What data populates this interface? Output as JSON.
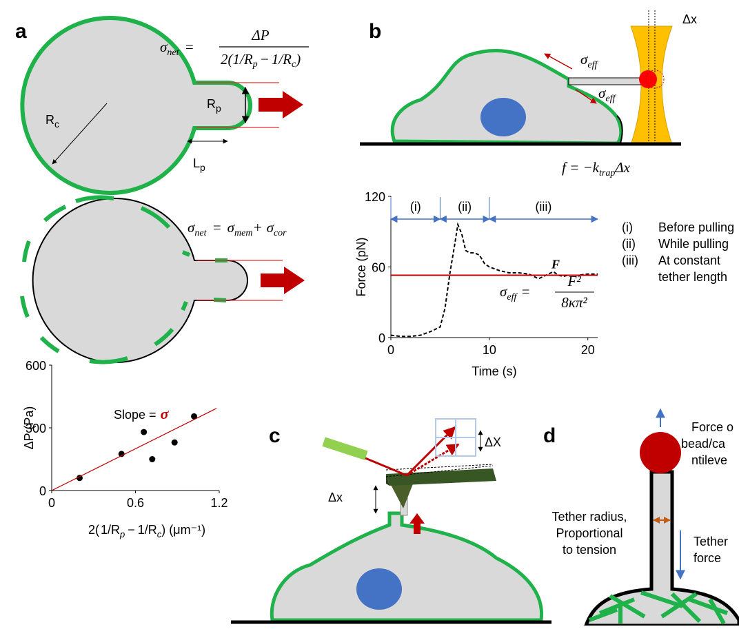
{
  "labels": {
    "a": "a",
    "b": "b",
    "c": "c",
    "d": "d"
  },
  "panel_a": {
    "eq1": {
      "sigma": "σ",
      "sub": "net",
      "eq": "=",
      "numerator": "ΔP",
      "den_pre": "2(",
      "den_f1": "1/R",
      "den_f1_sub": "p",
      "den_minus": "−",
      "den_f2": "1/R",
      "den_f2_sub": "c",
      "den_post": ")"
    },
    "rc": "R",
    "rc_sub": "c",
    "rp": "R",
    "rp_sub": "p",
    "lp": "L",
    "lp_sub": "p",
    "eq2": {
      "sigma": "σ",
      "sub": "net",
      "eq": "=",
      "s1": "σ",
      "s1_sub": "mem",
      "plus": "+",
      "s2": "σ",
      "s2_sub": "cor"
    }
  },
  "panel_b": {
    "dx": "Δx",
    "sigma_eff": "σ",
    "eff_sub": "eff",
    "eq": {
      "lhs": "f = −k",
      "sub": "trap",
      "rhs": "Δx"
    },
    "eq_eff": {
      "sigma": "σ",
      "sub": "eff",
      "eq": "=",
      "numerator": "F²",
      "denominator": "8κπ²"
    },
    "phase_legend": [
      {
        "key": "(i)",
        "lines": [
          "Before pulling"
        ]
      },
      {
        "key": "(ii)",
        "lines": [
          "While pulling"
        ]
      },
      {
        "key": "(iii)",
        "lines": [
          "At constant",
          "tether length"
        ]
      }
    ]
  },
  "panel_c": {
    "dX": "ΔX",
    "dx": "Δx"
  },
  "panel_d": {
    "force_bead": [
      "Force o",
      "bead/ca",
      "ntileve"
    ],
    "tether_radius": [
      "Tether radius,",
      "Proportional",
      "to tension"
    ],
    "tether_force": [
      "Tether",
      "force"
    ]
  },
  "chart_data": [
    {
      "type": "scatter",
      "y_label": "ΔP (Pa)",
      "x_label": {
        "pre": "2(",
        "f1": "1/R",
        "f1_sub": "p",
        "minus": "−",
        "f2": "1/R",
        "f2_sub": "c",
        "post": ") (μm⁻¹)"
      },
      "x": [
        0.2,
        0.5,
        0.66,
        0.72,
        0.88,
        1.02
      ],
      "values": [
        60,
        175,
        280,
        150,
        230,
        355
      ],
      "color": "#000000",
      "xlim": [
        0,
        1.2
      ],
      "ylim": [
        0,
        600
      ],
      "xticks": [
        0,
        0.6,
        1.2
      ],
      "yticks": [
        0,
        300,
        600
      ],
      "fit": {
        "x": [
          0,
          1.18
        ],
        "y": [
          0,
          393
        ],
        "color": "#c00000"
      },
      "annotation": {
        "text": "Slope =",
        "symbol": "σ"
      }
    },
    {
      "type": "line",
      "y_label": "Force (pN)",
      "x_label": "Time (s)",
      "x": [
        0,
        1,
        2,
        3,
        4,
        5,
        5.5,
        6,
        6.5,
        6.8,
        7.2,
        7.6,
        8,
        8.5,
        9,
        9.5,
        10,
        11,
        12,
        13,
        14,
        15,
        16,
        16.5,
        17,
        17.5,
        18,
        19,
        20,
        21
      ],
      "values": [
        2,
        1,
        1,
        2,
        5,
        9,
        25,
        55,
        80,
        96,
        88,
        74,
        72,
        72,
        70,
        63,
        60,
        57,
        55,
        55,
        54,
        50,
        54,
        56,
        53,
        52,
        53,
        53,
        54,
        54
      ],
      "color": "#000000",
      "dashed": true,
      "xlim": [
        0,
        21
      ],
      "ylim": [
        0,
        120
      ],
      "xticks": [
        0,
        10,
        20
      ],
      "yticks": [
        0,
        60,
        120
      ],
      "reference": {
        "label": "F",
        "value": 53,
        "color": "#c00000"
      },
      "phases": [
        {
          "label": "(i)",
          "start": 0,
          "end": 5
        },
        {
          "label": "(ii)",
          "start": 5,
          "end": 10
        },
        {
          "label": "(iii)",
          "start": 10,
          "end": 21
        }
      ]
    }
  ]
}
